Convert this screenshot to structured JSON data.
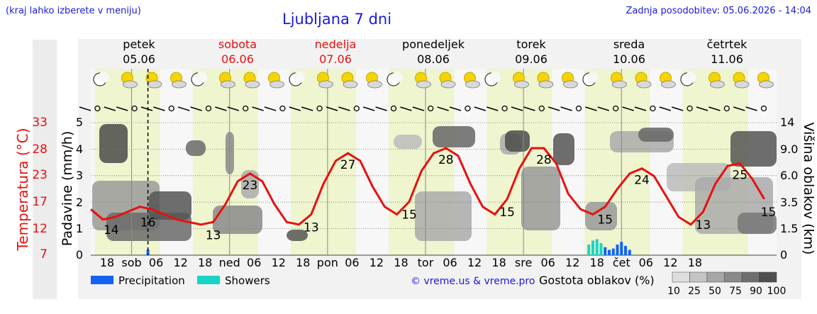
{
  "header": {
    "note": "(kraj lahko izberete v meniju)",
    "title": "Ljubljana 7 dni",
    "updated": "Zadnja posodobitev: 05.06.2026 - 14:04"
  },
  "axis_labels": {
    "temperature": "Temperatura (°C)",
    "precipitation": "Padavine (mm/h)",
    "cloud_height": "Višina oblakov (km)"
  },
  "temp_ticks": [
    "33",
    "28",
    "23",
    "17",
    "12",
    "7"
  ],
  "precip_ticks": [
    "5",
    "4",
    "3",
    "2",
    "1",
    "0"
  ],
  "cloud_ticks": [
    "14",
    "9.0",
    "6.0",
    "3.5",
    "1.5",
    "0"
  ],
  "days": [
    {
      "name": "petek",
      "date": "05.06",
      "color": "#000000"
    },
    {
      "name": "sobota",
      "date": "06.06",
      "color": "#e81010"
    },
    {
      "name": "nedelja",
      "date": "07.06",
      "color": "#e81010"
    },
    {
      "name": "ponedeljek",
      "date": "08.06",
      "color": "#000000"
    },
    {
      "name": "torek",
      "date": "09.06",
      "color": "#000000"
    },
    {
      "name": "sreda",
      "date": "10.06",
      "color": "#000000"
    },
    {
      "name": "četrtek",
      "date": "11.06",
      "color": "#000000"
    }
  ],
  "day_short": [
    "sob",
    "ned",
    "pon",
    "tor",
    "sre",
    "čet"
  ],
  "hour_labels": [
    "06",
    "12",
    "18"
  ],
  "legend": {
    "precipitation": "Precipitation",
    "showers": "Showers",
    "copyright": "© vreme.us & vreme.pro",
    "cloud_density": "Gostota oblakov (%)",
    "density_values": [
      "10",
      "25",
      "50",
      "75",
      "90",
      "100"
    ],
    "colors": {
      "precipitation": "#1463f0",
      "showers": "#19d4c6",
      "temperature": "#e81010"
    }
  },
  "chart_data": {
    "type": "line",
    "title": "Ljubljana 7 dni",
    "xlabel": "",
    "ylabel": "Temperatura (°C)",
    "ylim": [
      7,
      33
    ],
    "series": [
      {
        "name": "Temperatura (°C)",
        "x_hours": [
          0,
          3,
          6,
          9,
          12,
          15,
          18,
          21,
          24,
          27,
          30,
          33,
          36,
          39,
          42,
          45,
          48,
          51,
          54,
          57,
          60,
          63,
          66,
          69,
          72,
          75,
          78,
          81,
          84,
          87,
          90,
          93,
          96,
          99,
          102,
          105,
          108,
          111,
          114,
          117,
          120,
          123,
          126,
          129,
          132,
          135,
          138,
          141,
          144,
          147,
          150,
          153,
          156,
          159,
          162,
          165
        ],
        "values": [
          16,
          14,
          14.5,
          15.5,
          16.5,
          16,
          15,
          14,
          13.5,
          13,
          13.5,
          17,
          21.5,
          23,
          21.5,
          17,
          13.5,
          13,
          15,
          21,
          25.5,
          27,
          25.5,
          20.5,
          16.5,
          15,
          17.5,
          23.5,
          27,
          28,
          26.5,
          21,
          16.5,
          15,
          18,
          24,
          28,
          28,
          25,
          19,
          16,
          15,
          16.5,
          20,
          23,
          24,
          22.5,
          18.5,
          14.5,
          13,
          15.5,
          21,
          24.5,
          25,
          22,
          18
        ]
      }
    ],
    "annotations": [
      {
        "x_hours": 5,
        "label": "14"
      },
      {
        "x_hours": 14,
        "label": "16"
      },
      {
        "x_hours": 30,
        "label": "13"
      },
      {
        "x_hours": 39,
        "label": "23"
      },
      {
        "x_hours": 54,
        "label": "13"
      },
      {
        "x_hours": 63,
        "label": "27"
      },
      {
        "x_hours": 78,
        "label": "15"
      },
      {
        "x_hours": 87,
        "label": "28"
      },
      {
        "x_hours": 102,
        "label": "15"
      },
      {
        "x_hours": 111,
        "label": "28"
      },
      {
        "x_hours": 126,
        "label": "15"
      },
      {
        "x_hours": 135,
        "label": "24"
      },
      {
        "x_hours": 150,
        "label": "13"
      },
      {
        "x_hours": 159,
        "label": "25"
      },
      {
        "x_hours": 166,
        "label": "15"
      }
    ],
    "precipitation_bars": [
      {
        "x_hours": 14,
        "value": 0.2,
        "type": "precipitation"
      },
      {
        "x_hours": 122,
        "value": 0.4,
        "type": "showers"
      },
      {
        "x_hours": 123,
        "value": 0.55,
        "type": "showers"
      },
      {
        "x_hours": 124,
        "value": 0.6,
        "type": "showers"
      },
      {
        "x_hours": 125,
        "value": 0.45,
        "type": "showers"
      },
      {
        "x_hours": 126,
        "value": 0.3,
        "type": "precipitation"
      },
      {
        "x_hours": 127,
        "value": 0.2,
        "type": "precipitation"
      },
      {
        "x_hours": 128,
        "value": 0.25,
        "type": "precipitation"
      },
      {
        "x_hours": 129,
        "value": 0.4,
        "type": "precipitation"
      },
      {
        "x_hours": 130,
        "value": 0.5,
        "type": "precipitation"
      },
      {
        "x_hours": 131,
        "value": 0.35,
        "type": "precipitation"
      },
      {
        "x_hours": 132,
        "value": 0.2,
        "type": "precipitation"
      }
    ],
    "current_time_hours": 14,
    "grid": true
  }
}
